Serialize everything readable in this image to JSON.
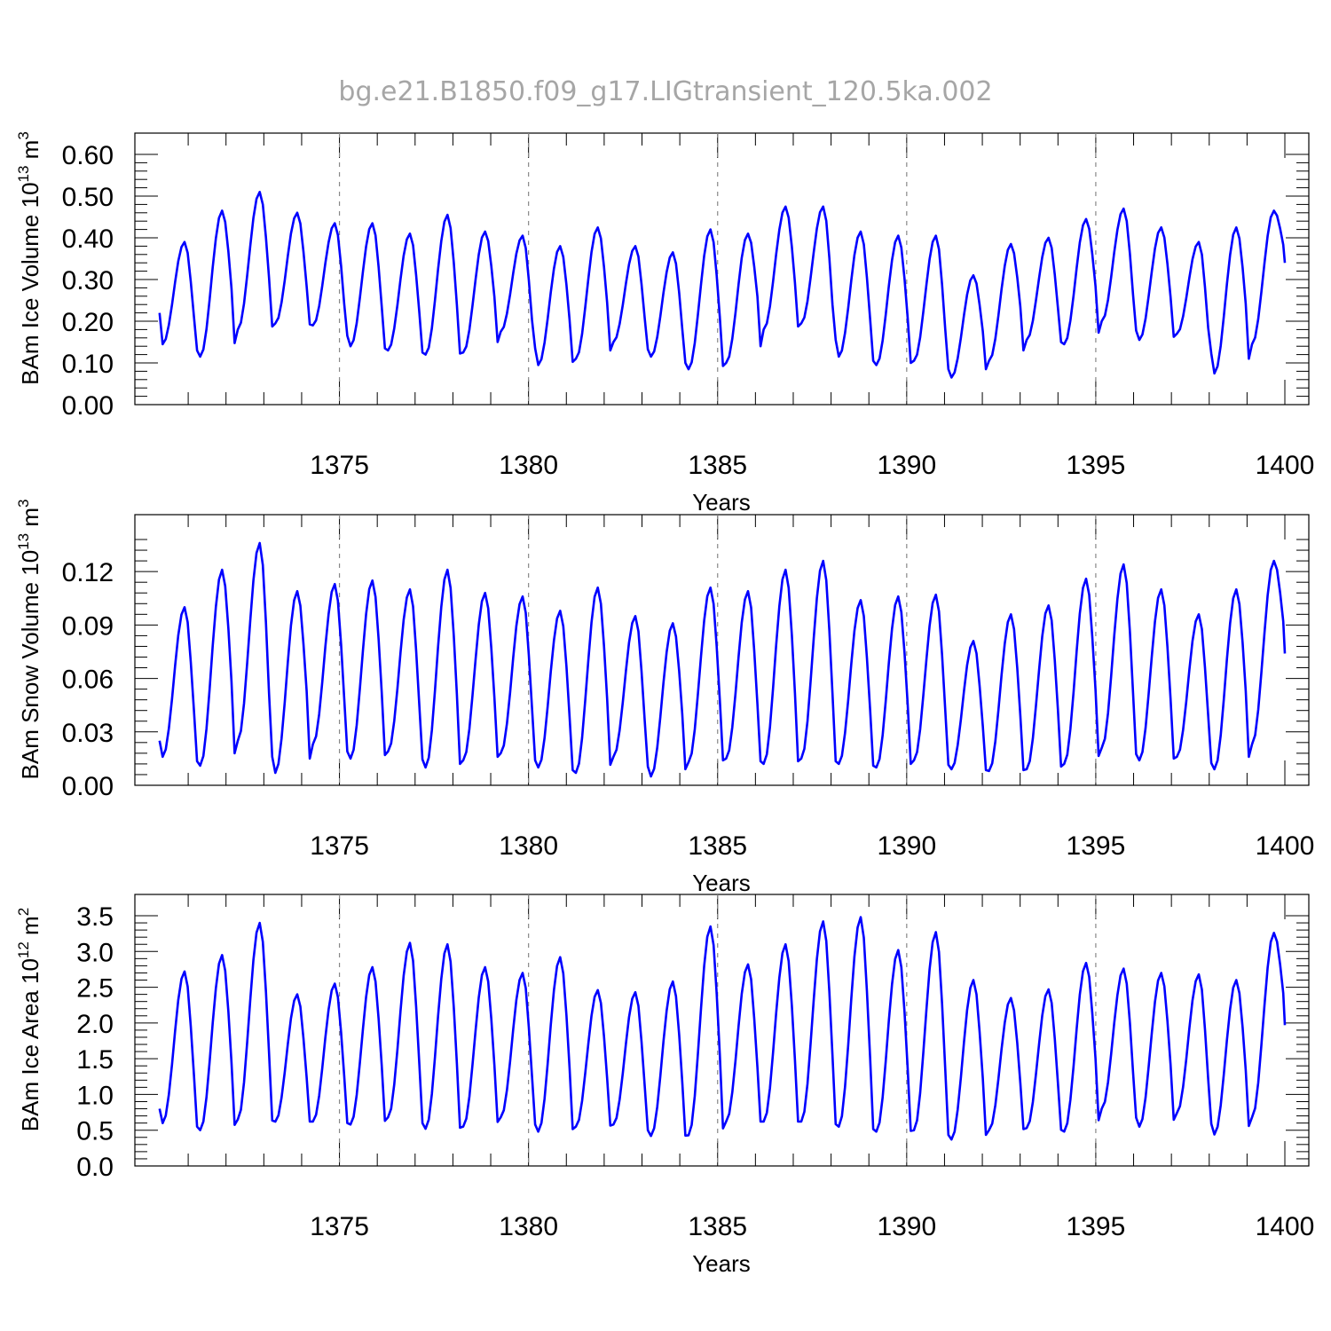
{
  "title": "bg.e21.B1850.f09_g17.LIGtransient_120.5ka.002",
  "line_color": "#0000ff",
  "chart_data": [
    {
      "type": "line",
      "id": "ice-volume",
      "ylabel": "BAm Ice Volume",
      "yunit_mant": "10",
      "yunit_exp": "13",
      "yunit_base": "m",
      "yunit_pow": "3",
      "xlabel": "Years",
      "xlim": [
        1370.2,
        1400.0
      ],
      "ylim": [
        0.0,
        0.6
      ],
      "xticks": [
        1375,
        1380,
        1385,
        1390,
        1395,
        1400
      ],
      "xtick_labels": [
        "1375",
        "1380",
        "1385",
        "1390",
        "1395",
        "1400"
      ],
      "yticks": [
        0.0,
        0.1,
        0.2,
        0.3,
        0.4,
        0.5,
        0.6
      ],
      "ytick_labels": [
        "0.00",
        "0.10",
        "0.20",
        "0.30",
        "0.40",
        "0.50",
        "0.60"
      ],
      "grid_x": true,
      "peaks": [
        0.39,
        0.465,
        0.51,
        0.46,
        0.435,
        0.435,
        0.41,
        0.455,
        0.415,
        0.405,
        0.38,
        0.425,
        0.38,
        0.365,
        0.42,
        0.41,
        0.475,
        0.475,
        0.415,
        0.405,
        0.405,
        0.31,
        0.385,
        0.4,
        0.445,
        0.47,
        0.425,
        0.39,
        0.425,
        0.465
      ],
      "troughs": [
        0.145,
        0.115,
        0.18,
        0.195,
        0.19,
        0.14,
        0.13,
        0.12,
        0.125,
        0.175,
        0.095,
        0.11,
        0.15,
        0.115,
        0.085,
        0.1,
        0.18,
        0.195,
        0.115,
        0.095,
        0.105,
        0.065,
        0.105,
        0.155,
        0.145,
        0.2,
        0.155,
        0.17,
        0.075,
        0.145
      ],
      "start_value": 0.22,
      "end_value": 0.34
    },
    {
      "type": "line",
      "id": "snow-volume",
      "ylabel": "BAm Snow Volume",
      "yunit_mant": "10",
      "yunit_exp": "13",
      "yunit_base": "m",
      "yunit_pow": "3",
      "xlabel": "Years",
      "xlim": [
        1370.2,
        1400.0
      ],
      "ylim": [
        0.0,
        0.14
      ],
      "xticks": [
        1375,
        1380,
        1385,
        1390,
        1395,
        1400
      ],
      "xtick_labels": [
        "1375",
        "1380",
        "1385",
        "1390",
        "1395",
        "1400"
      ],
      "yticks": [
        0.0,
        0.03,
        0.06,
        0.09,
        0.12
      ],
      "ytick_labels": [
        "0.00",
        "0.03",
        "0.06",
        "0.09",
        "0.12"
      ],
      "grid_x": true,
      "peaks": [
        0.1,
        0.121,
        0.136,
        0.109,
        0.113,
        0.115,
        0.11,
        0.121,
        0.108,
        0.106,
        0.098,
        0.111,
        0.095,
        0.091,
        0.111,
        0.109,
        0.121,
        0.126,
        0.104,
        0.106,
        0.107,
        0.081,
        0.096,
        0.101,
        0.116,
        0.124,
        0.11,
        0.096,
        0.11,
        0.126
      ],
      "troughs": [
        0.016,
        0.011,
        0.025,
        0.007,
        0.023,
        0.015,
        0.019,
        0.01,
        0.014,
        0.018,
        0.01,
        0.007,
        0.016,
        0.005,
        0.013,
        0.015,
        0.012,
        0.015,
        0.012,
        0.01,
        0.014,
        0.009,
        0.008,
        0.009,
        0.012,
        0.021,
        0.014,
        0.016,
        0.009,
        0.023
      ],
      "start_value": 0.025,
      "end_value": 0.074
    },
    {
      "type": "line",
      "id": "ice-area",
      "ylabel": "BAm Ice Area",
      "yunit_mant": "10",
      "yunit_exp": "12",
      "yunit_base": "m",
      "yunit_pow": "2",
      "xlabel": "Years",
      "xlim": [
        1370.2,
        1400.0
      ],
      "ylim": [
        0.0,
        3.5
      ],
      "xticks": [
        1375,
        1380,
        1385,
        1390,
        1395,
        1400
      ],
      "xtick_labels": [
        "1375",
        "1380",
        "1385",
        "1390",
        "1395",
        "1400"
      ],
      "yticks": [
        0.0,
        0.5,
        1.0,
        1.5,
        2.0,
        2.5,
        3.0,
        3.5
      ],
      "ytick_labels": [
        "0.0",
        "0.5",
        "1.0",
        "1.5",
        "2.0",
        "2.5",
        "3.0",
        "3.5"
      ],
      "grid_x": true,
      "peaks": [
        2.72,
        2.95,
        3.4,
        2.4,
        2.55,
        2.78,
        3.12,
        3.1,
        2.78,
        2.7,
        2.92,
        2.46,
        2.43,
        2.58,
        3.35,
        2.82,
        3.1,
        3.42,
        3.48,
        3.02,
        3.27,
        2.6,
        2.35,
        2.47,
        2.84,
        2.76,
        2.7,
        2.68,
        2.6,
        3.26
      ],
      "troughs": [
        0.6,
        0.5,
        0.65,
        0.62,
        0.62,
        0.58,
        0.68,
        0.52,
        0.55,
        0.68,
        0.48,
        0.55,
        0.58,
        0.42,
        0.43,
        0.62,
        0.62,
        0.62,
        0.55,
        0.48,
        0.5,
        0.37,
        0.5,
        0.53,
        0.48,
        0.8,
        0.55,
        0.74,
        0.44,
        0.68
      ],
      "start_value": 0.8,
      "end_value": 1.97
    }
  ]
}
